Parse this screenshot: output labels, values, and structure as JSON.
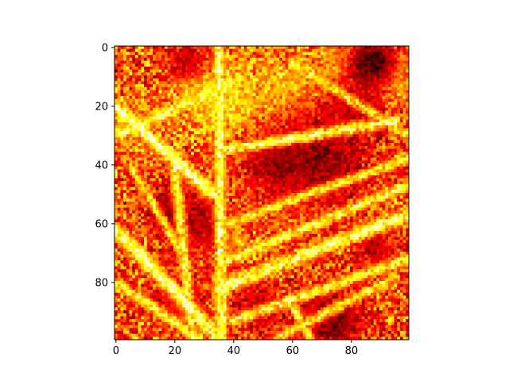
{
  "chart_data": {
    "type": "heatmap",
    "title": "",
    "xlabel": "",
    "ylabel": "",
    "colormap": "hot",
    "grid": false,
    "legend": "none",
    "n_rows": 100,
    "n_cols": 100,
    "xlim": [
      -0.5,
      99.5
    ],
    "ylim": [
      99.5,
      -0.5
    ],
    "y_inverted": true,
    "x_ticks": [
      0,
      20,
      40,
      60,
      80
    ],
    "y_ticks": [
      0,
      20,
      40,
      60,
      80
    ],
    "x_tick_labels": [
      "0",
      "20",
      "40",
      "60",
      "80"
    ],
    "y_tick_labels": [
      "0",
      "20",
      "40",
      "60",
      "80"
    ],
    "value_range": [
      0,
      1
    ],
    "texture": "noisy intensity field with bright diagonal ridges",
    "structures": [
      {
        "kind": "ridge",
        "x1": 0,
        "y1": 20,
        "x2": 33,
        "y2": 50,
        "width": 2.5,
        "value": 0.95
      },
      {
        "kind": "ridge",
        "x1": 35,
        "y1": 0,
        "x2": 36,
        "y2": 99,
        "width": 2.2,
        "value": 0.9
      },
      {
        "kind": "ridge",
        "x1": 0,
        "y1": 62,
        "x2": 35,
        "y2": 99,
        "width": 2.5,
        "value": 0.95
      },
      {
        "kind": "ridge",
        "x1": 0,
        "y1": 80,
        "x2": 28,
        "y2": 99,
        "width": 2.0,
        "value": 0.85
      },
      {
        "kind": "ridge",
        "x1": 20,
        "y1": 40,
        "x2": 26,
        "y2": 99,
        "width": 2.0,
        "value": 0.85
      },
      {
        "kind": "ridge",
        "x1": 35,
        "y1": 82,
        "x2": 99,
        "y2": 57,
        "width": 2.5,
        "value": 0.92
      },
      {
        "kind": "ridge",
        "x1": 37,
        "y1": 73,
        "x2": 99,
        "y2": 47,
        "width": 2.0,
        "value": 0.85
      },
      {
        "kind": "ridge",
        "x1": 38,
        "y1": 60,
        "x2": 99,
        "y2": 38,
        "width": 1.8,
        "value": 0.82
      },
      {
        "kind": "ridge",
        "x1": 36,
        "y1": 35,
        "x2": 95,
        "y2": 25,
        "width": 2.0,
        "value": 0.88
      },
      {
        "kind": "ridge",
        "x1": 40,
        "y1": 93,
        "x2": 99,
        "y2": 72,
        "width": 2.0,
        "value": 0.85
      },
      {
        "kind": "ridge",
        "x1": 0,
        "y1": 30,
        "x2": 40,
        "y2": 12,
        "width": 2.2,
        "value": 0.88
      },
      {
        "kind": "ridge",
        "x1": 55,
        "y1": 99,
        "x2": 95,
        "y2": 78,
        "width": 1.8,
        "value": 0.8
      },
      {
        "kind": "ridge",
        "x1": 60,
        "y1": 5,
        "x2": 99,
        "y2": 30,
        "width": 1.8,
        "value": 0.8
      },
      {
        "kind": "ridge",
        "x1": 5,
        "y1": 40,
        "x2": 25,
        "y2": 75,
        "width": 1.6,
        "value": 0.8
      },
      {
        "kind": "ridge",
        "x1": 60,
        "y1": 88,
        "x2": 66,
        "y2": 99,
        "width": 1.6,
        "value": 0.85
      },
      {
        "kind": "blob",
        "x": 38,
        "y": 18,
        "r": 10,
        "value": 0.85
      },
      {
        "kind": "blob",
        "x": 28,
        "y": 15,
        "r": 6,
        "value": 0.8
      },
      {
        "kind": "blob",
        "x": 8,
        "y": 28,
        "r": 7,
        "value": 0.75
      },
      {
        "kind": "blob",
        "x": 58,
        "y": 14,
        "r": 8,
        "value": 0.8
      },
      {
        "kind": "blob",
        "x": 75,
        "y": 5,
        "r": 6,
        "value": 0.75
      },
      {
        "kind": "blob",
        "x": 95,
        "y": 10,
        "r": 6,
        "value": 0.78
      },
      {
        "kind": "blob",
        "x": 60,
        "y": 52,
        "r": 7,
        "value": 0.72
      },
      {
        "kind": "blob",
        "x": 38,
        "y": 65,
        "r": 6,
        "value": 0.75
      },
      {
        "kind": "dark",
        "x": 70,
        "y": 38,
        "r": 12,
        "value": 0.1
      },
      {
        "kind": "dark",
        "x": 55,
        "y": 40,
        "r": 8,
        "value": 0.15
      },
      {
        "kind": "dark",
        "x": 86,
        "y": 7,
        "r": 6,
        "value": 0.05
      },
      {
        "kind": "dark",
        "x": 88,
        "y": 4,
        "r": 4,
        "value": 0.02
      },
      {
        "kind": "dark",
        "x": 73,
        "y": 93,
        "r": 8,
        "value": 0.05
      },
      {
        "kind": "dark",
        "x": 28,
        "y": 60,
        "r": 7,
        "value": 0.15
      },
      {
        "kind": "dark",
        "x": 18,
        "y": 55,
        "r": 6,
        "value": 0.2
      },
      {
        "kind": "dark",
        "x": 22,
        "y": 85,
        "r": 6,
        "value": 0.2
      },
      {
        "kind": "dark",
        "x": 80,
        "y": 20,
        "r": 6,
        "value": 0.25
      },
      {
        "kind": "dark",
        "x": 24,
        "y": 4,
        "r": 5,
        "value": 0.2
      },
      {
        "kind": "dark",
        "x": 48,
        "y": 88,
        "r": 6,
        "value": 0.2
      },
      {
        "kind": "dark",
        "x": 88,
        "y": 68,
        "r": 5,
        "value": 0.2
      }
    ]
  }
}
